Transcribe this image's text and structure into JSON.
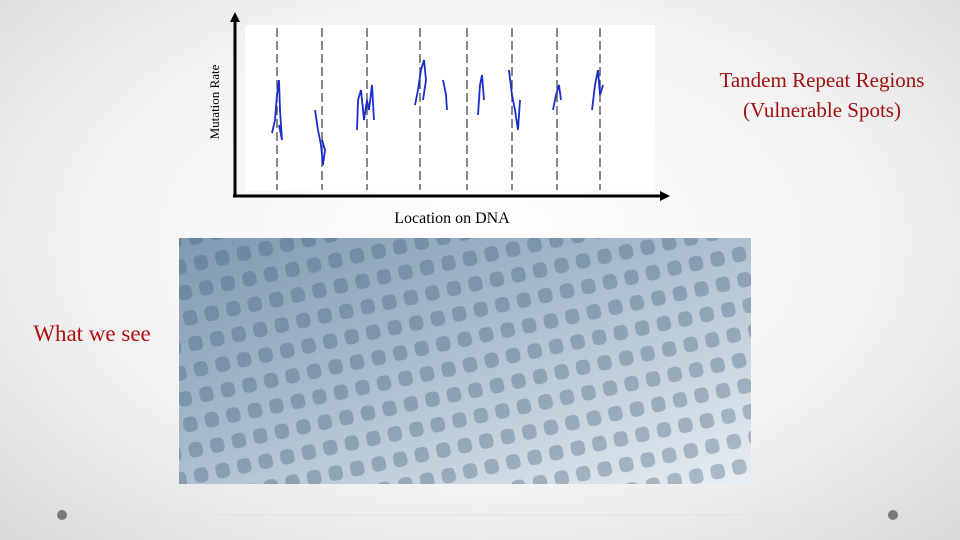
{
  "chart": {
    "y_axis_label": "Mutation Rate",
    "x_axis_label": "Location on DNA"
  },
  "callout": {
    "lines": [
      "Tandem Repeat Regions",
      "(Vulnerable Spots)"
    ]
  },
  "caption": "What we see"
}
